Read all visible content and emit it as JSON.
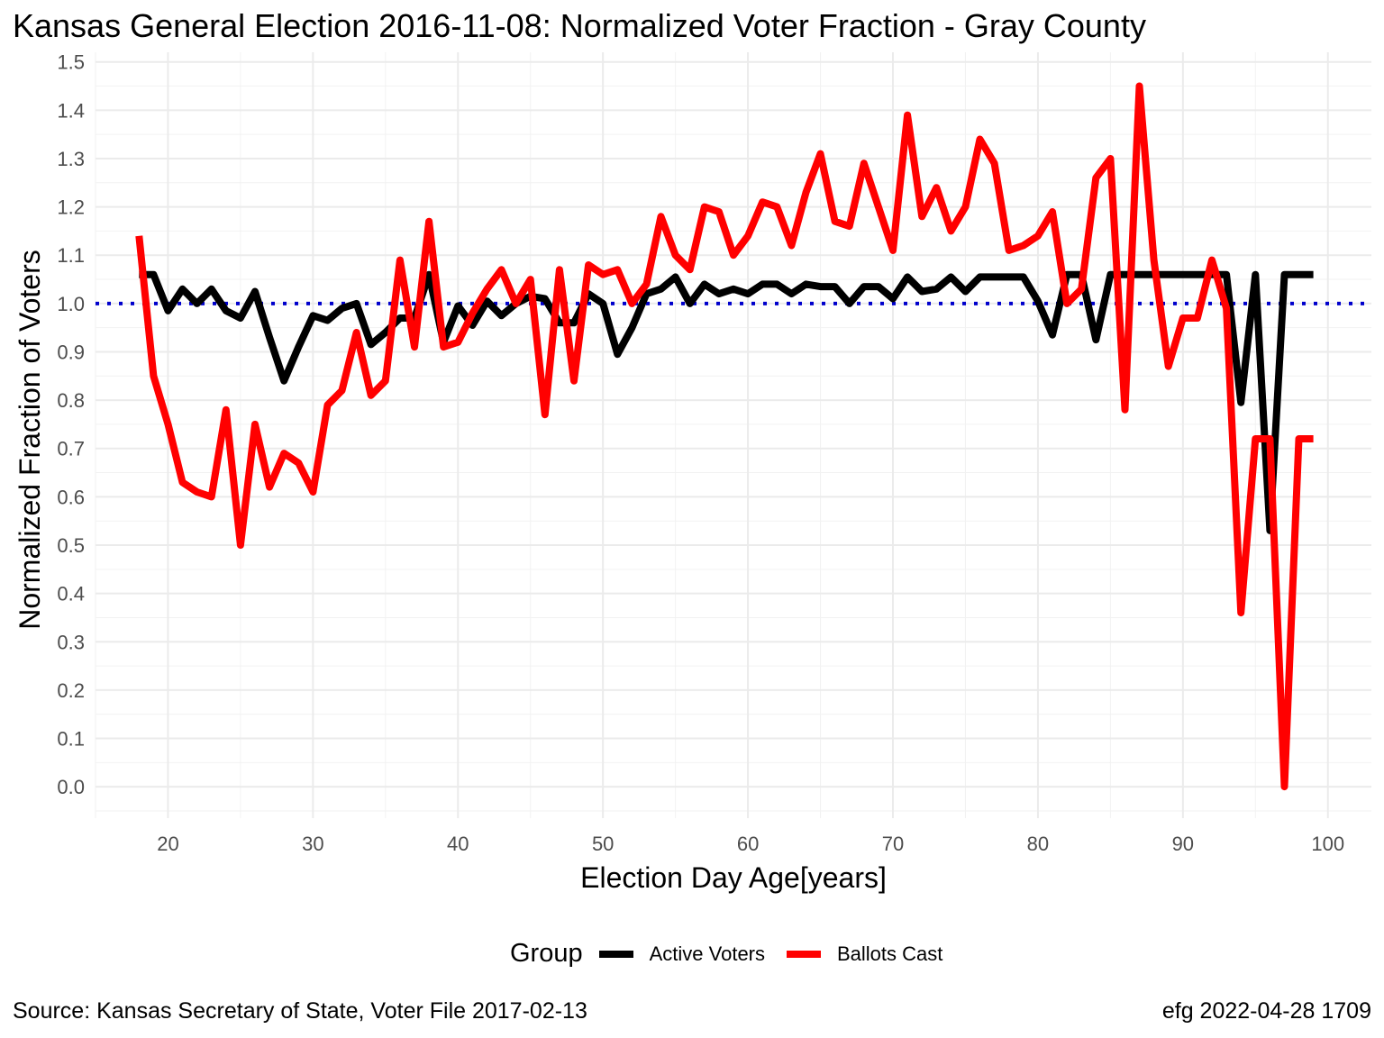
{
  "chart_data": {
    "type": "line",
    "title": "Kansas General Election 2016-11-08:  Normalized Voter Fraction - Gray County",
    "xlabel": "Election Day Age[years]",
    "ylabel": "Normalized Fraction of Voters",
    "xlim": [
      15,
      103
    ],
    "ylim": [
      -0.065,
      1.52
    ],
    "x_ticks": [
      20,
      30,
      40,
      50,
      60,
      70,
      80,
      90,
      100
    ],
    "x_tick_labels": [
      "20",
      "30",
      "40",
      "50",
      "60",
      "70",
      "80",
      "90",
      "100"
    ],
    "y_ticks": [
      0.0,
      0.1,
      0.2,
      0.3,
      0.4,
      0.5,
      0.6,
      0.7,
      0.8,
      0.9,
      1.0,
      1.1,
      1.2,
      1.3,
      1.4,
      1.5
    ],
    "y_tick_labels": [
      "0.0",
      "0.1",
      "0.2",
      "0.3",
      "0.4",
      "0.5",
      "0.6",
      "0.7",
      "0.8",
      "0.9",
      "1.0",
      "1.1",
      "1.2",
      "1.3",
      "1.4",
      "1.5"
    ],
    "reference_line": {
      "y": 1.0,
      "color": "#0000cc",
      "style": "dotted"
    },
    "legend": {
      "title": "Group",
      "position": "bottom"
    },
    "x": [
      18,
      19,
      20,
      21,
      22,
      23,
      24,
      25,
      26,
      27,
      28,
      29,
      30,
      31,
      32,
      33,
      34,
      35,
      36,
      37,
      38,
      39,
      40,
      41,
      42,
      43,
      44,
      45,
      46,
      47,
      48,
      49,
      50,
      51,
      52,
      53,
      54,
      55,
      56,
      57,
      58,
      59,
      60,
      61,
      62,
      63,
      64,
      65,
      66,
      67,
      68,
      69,
      70,
      71,
      72,
      73,
      74,
      75,
      76,
      77,
      78,
      79,
      80,
      81,
      82,
      83,
      84,
      85,
      86,
      87,
      88,
      89,
      90,
      91,
      92,
      93,
      94,
      95,
      96,
      97,
      98,
      99
    ],
    "series": [
      {
        "name": "Active Voters",
        "color": "#000000",
        "values": [
          1.06,
          1.06,
          0.985,
          1.03,
          1.0,
          1.03,
          0.985,
          0.97,
          1.025,
          0.93,
          0.84,
          0.91,
          0.975,
          0.965,
          0.99,
          1.0,
          0.915,
          0.94,
          0.97,
          0.97,
          1.06,
          0.92,
          0.995,
          0.955,
          1.005,
          0.975,
          1.0,
          1.015,
          1.01,
          0.96,
          0.96,
          1.02,
          1.0,
          0.895,
          0.95,
          1.02,
          1.03,
          1.055,
          1.0,
          1.04,
          1.02,
          1.03,
          1.02,
          1.04,
          1.04,
          1.02,
          1.04,
          1.035,
          1.035,
          1.0,
          1.035,
          1.035,
          1.01,
          1.055,
          1.025,
          1.03,
          1.055,
          1.025,
          1.055,
          1.055,
          1.055,
          1.055,
          1.005,
          0.935,
          1.06,
          1.06,
          0.925,
          1.06,
          1.06,
          1.06,
          1.06,
          1.06,
          1.06,
          1.06,
          1.06,
          1.06,
          0.795,
          1.06,
          0.53,
          1.06,
          1.06,
          1.06
        ]
      },
      {
        "name": "Ballots Cast",
        "color": "#ff0000",
        "values": [
          1.14,
          0.85,
          0.75,
          0.63,
          0.61,
          0.6,
          0.78,
          0.5,
          0.75,
          0.62,
          0.69,
          0.67,
          0.61,
          0.79,
          0.82,
          0.94,
          0.81,
          0.84,
          1.09,
          0.91,
          1.17,
          0.91,
          0.92,
          0.98,
          1.03,
          1.07,
          1.0,
          1.05,
          0.77,
          1.07,
          0.84,
          1.08,
          1.06,
          1.07,
          1.0,
          1.04,
          1.18,
          1.1,
          1.07,
          1.2,
          1.19,
          1.1,
          1.14,
          1.21,
          1.2,
          1.12,
          1.23,
          1.31,
          1.17,
          1.16,
          1.29,
          1.2,
          1.11,
          1.39,
          1.18,
          1.24,
          1.15,
          1.2,
          1.34,
          1.29,
          1.11,
          1.12,
          1.14,
          1.19,
          1.0,
          1.03,
          1.26,
          1.3,
          0.78,
          1.45,
          1.09,
          0.87,
          0.97,
          0.97,
          1.09,
          0.99,
          0.36,
          0.72,
          0.72,
          0.0,
          0.72,
          0.72
        ]
      }
    ]
  },
  "caption": {
    "source": "Source:  Kansas Secretary of State, Voter File  2017-02-13",
    "credit": "efg 2022-04-28 1709"
  }
}
